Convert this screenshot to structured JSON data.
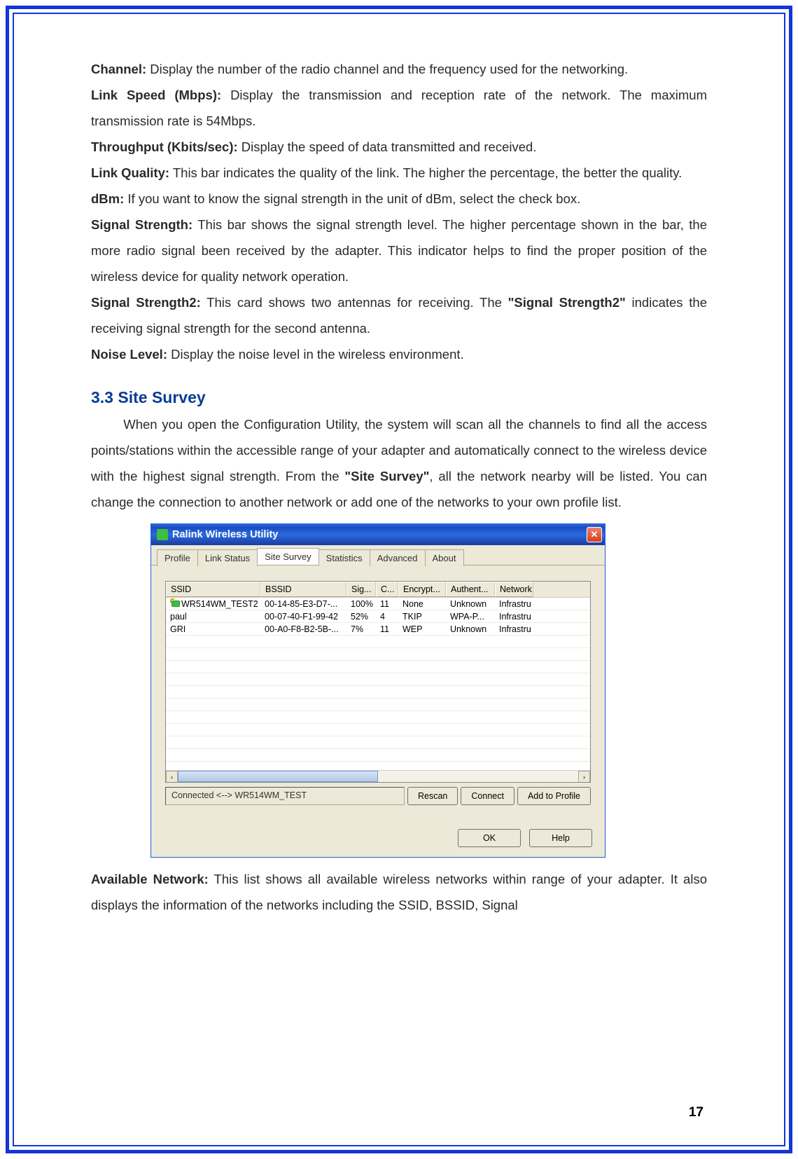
{
  "definitions": [
    {
      "term": "Channel:",
      "text": " Display the number of the radio channel and the frequency used for the networking."
    },
    {
      "term": "Link Speed (Mbps):",
      "text": " Display the transmission and reception rate of the network. The maximum transmission rate is 54Mbps."
    },
    {
      "term": "Throughput (Kbits/sec):",
      "text": " Display the speed of data transmitted and received."
    },
    {
      "term": "Link Quality:",
      "text": " This bar indicates the quality of the link. The higher the percentage, the better the quality."
    },
    {
      "term": "dBm:",
      "text": " If you want to know the signal strength in the unit of dBm, select the check box."
    },
    {
      "term": "Signal Strength:",
      "text": " This bar shows the signal strength level. The higher percentage shown in the bar, the more radio signal been received by the adapter. This indicator helps to find the proper position of the wireless device for quality network operation."
    },
    {
      "term": "Signal Strength2:",
      "text_before_bold": " This card shows two antennas for receiving. The ",
      "bold_mid": "\"Signal Strength2\"",
      "text_after_bold": " indicates the receiving signal strength for the second antenna."
    },
    {
      "term": "Noise Level:",
      "text": " Display the noise level in the wireless environment."
    }
  ],
  "section": {
    "number": "3.3",
    "title": "Site Survey",
    "intro_before": "When you open the Configuration Utility, the system will scan all the channels to find all the access points/stations within the accessible range of your adapter and automatically connect to the wireless device with the highest signal strength. From the ",
    "intro_bold": "\"Site Survey\"",
    "intro_after": ", all the network nearby will be listed. You can change the connection to another network or add one of the networks to your own profile list."
  },
  "window": {
    "title": "Ralink Wireless Utility",
    "tabs": [
      "Profile",
      "Link Status",
      "Site Survey",
      "Statistics",
      "Advanced",
      "About"
    ],
    "active_tab": 2,
    "columns": [
      "SSID",
      "BSSID",
      "Sig...",
      "C...",
      "Encrypt...",
      "Authent...",
      "Network"
    ],
    "rows": [
      {
        "connected": true,
        "ssid": "WR514WM_TEST2",
        "bssid": "00-14-85-E3-D7-...",
        "sig": "100%",
        "ch": "11",
        "enc": "None",
        "auth": "Unknown",
        "net": "Infrastru"
      },
      {
        "connected": false,
        "ssid": "paul",
        "bssid": "00-07-40-F1-99-42",
        "sig": "52%",
        "ch": "4",
        "enc": "TKIP",
        "auth": "WPA-P...",
        "net": "Infrastru"
      },
      {
        "connected": false,
        "ssid": "GRI",
        "bssid": "00-A0-F8-B2-5B-...",
        "sig": "7%",
        "ch": "11",
        "enc": "WEP",
        "auth": "Unknown",
        "net": "Infrastru"
      }
    ],
    "empty_rows": 10,
    "status": "Connected <--> WR514WM_TEST",
    "buttons": {
      "rescan": "Rescan",
      "connect": "Connect",
      "add": "Add to Profile"
    },
    "dialog_buttons": {
      "ok": "OK",
      "help": "Help"
    },
    "scroll_left": "‹",
    "scroll_right": "›"
  },
  "after_window": {
    "term": "Available Network:",
    "text": " This list shows all available wireless networks within range of your adapter. It also displays the information of the networks including the SSID, BSSID, Signal"
  },
  "page_number": "17"
}
